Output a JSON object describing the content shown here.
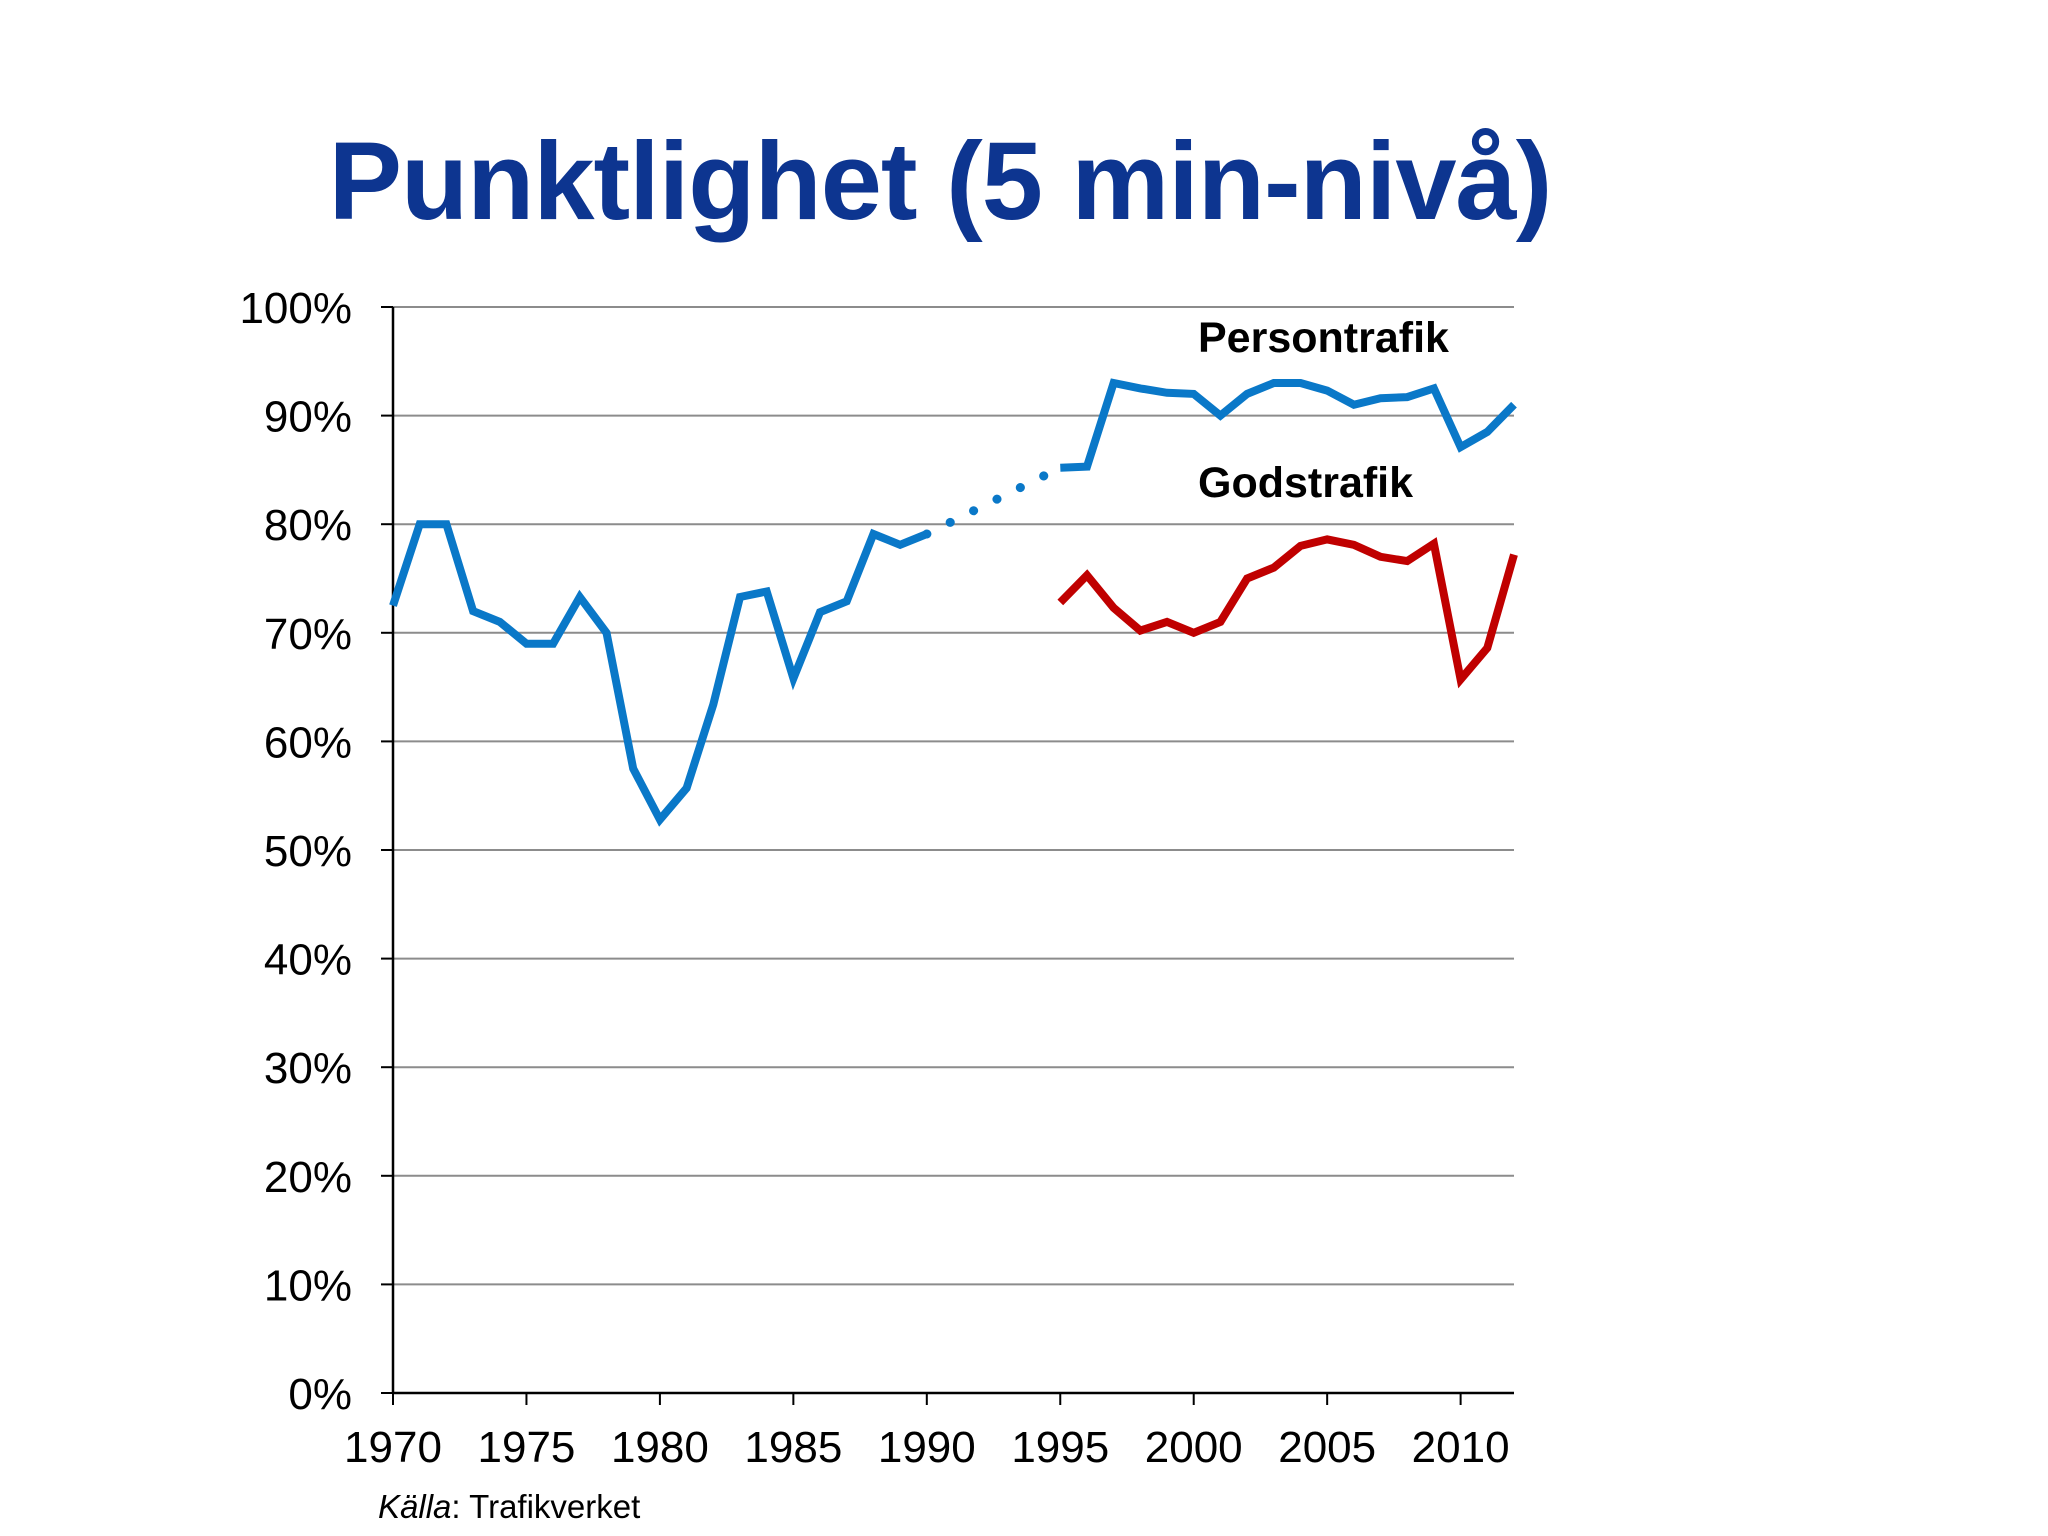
{
  "slide": {
    "title": "Punktlighet (5 min-nivå)",
    "source_label": "Källa",
    "source_separator": ": ",
    "source_name": "Trafikverket"
  },
  "chart_data": {
    "type": "line",
    "title": "Punktlighet (5 min-nivå)",
    "xlabel": "",
    "ylabel": "",
    "xlim": [
      1970,
      2012
    ],
    "ylim": [
      0,
      100
    ],
    "x_ticks": [
      1970,
      1975,
      1980,
      1985,
      1990,
      1995,
      2000,
      2005,
      2010
    ],
    "x_tick_labels": [
      "1970",
      "1975",
      "1980",
      "1985",
      "1990",
      "1995",
      "2000",
      "2005",
      "2010"
    ],
    "y_ticks": [
      0,
      10,
      20,
      30,
      40,
      50,
      60,
      70,
      80,
      90,
      100
    ],
    "y_tick_labels": [
      "0%",
      "10%",
      "20%",
      "30%",
      "40%",
      "50%",
      "60%",
      "70%",
      "80%",
      "90%",
      "100%"
    ],
    "grid": "horizontal",
    "legend": "inline labels",
    "series": [
      {
        "name": "Persontrafik",
        "color": "#0a78c8",
        "x": [
          1970,
          1971,
          1972,
          1973,
          1974,
          1975,
          1976,
          1977,
          1978,
          1979,
          1980,
          1981,
          1982,
          1983,
          1984,
          1985,
          1986,
          1987,
          1988,
          1989,
          1990,
          1995,
          1996,
          1997,
          1998,
          1999,
          2000,
          2001,
          2002,
          2003,
          2004,
          2005,
          2006,
          2007,
          2008,
          2009,
          2010,
          2011,
          2012
        ],
        "values": [
          72.5,
          80,
          80,
          72,
          71,
          69,
          69,
          73.3,
          70,
          57.5,
          52.8,
          55.7,
          63.4,
          73.3,
          73.8,
          65.8,
          71.9,
          72.9,
          79.1,
          78.1,
          79.1,
          85.2,
          85.3,
          93,
          92.5,
          92.1,
          92,
          90,
          92,
          93,
          93,
          92.3,
          91,
          91.6,
          91.7,
          92.5,
          87.1,
          88.5,
          91
        ],
        "gap_note": "1990–1995 dotted"
      },
      {
        "name": "Godstrafik",
        "color": "#c00000",
        "x": [
          1995,
          1996,
          1997,
          1998,
          1999,
          2000,
          2001,
          2002,
          2003,
          2004,
          2005,
          2006,
          2007,
          2008,
          2009,
          2010,
          2011,
          2012
        ],
        "values": [
          72.8,
          75.3,
          72.3,
          70.2,
          71,
          70,
          71,
          75,
          76,
          78,
          78.6,
          78.1,
          77,
          76.6,
          78.2,
          65.7,
          68.6,
          77.2
        ]
      }
    ]
  }
}
